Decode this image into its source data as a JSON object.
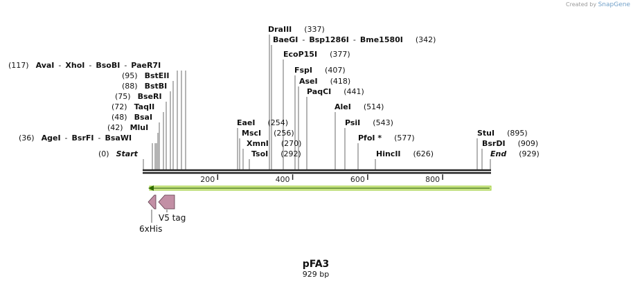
{
  "credit": {
    "text": "Created by",
    "brand": "SnapGene"
  },
  "plasmid": {
    "name": "pFA3",
    "length_label": "929 bp"
  },
  "ruler": {
    "length": 929,
    "ticks": [
      {
        "label": "200",
        "bp": 200
      },
      {
        "label": "400",
        "bp": 400
      },
      {
        "label": "600",
        "bp": 600
      },
      {
        "label": "800",
        "bp": 800
      }
    ]
  },
  "sites": [
    {
      "pos_label": "(117)",
      "enzymes": [
        {
          "name": "AvaI",
          "bp": 117
        },
        {
          "name": "XhoI",
          "bp": 117
        },
        {
          "name": "BsoBI",
          "bp": 117
        },
        {
          "name": "PaeR7I",
          "bp": 117
        }
      ],
      "side": "left"
    },
    {
      "pos_label": "(95)",
      "enzymes": [
        {
          "name": "BstEII",
          "bp": 95
        }
      ],
      "side": "left"
    },
    {
      "pos_label": "(88)",
      "enzymes": [
        {
          "name": "BstBI",
          "bp": 88
        }
      ],
      "side": "left"
    },
    {
      "pos_label": "(75)",
      "enzymes": [
        {
          "name": "BseRI",
          "bp": 75
        }
      ],
      "side": "left"
    },
    {
      "pos_label": "(72)",
      "enzymes": [
        {
          "name": "TaqII",
          "bp": 72
        }
      ],
      "side": "left"
    },
    {
      "pos_label": "(48)",
      "enzymes": [
        {
          "name": "BsaI",
          "bp": 48
        }
      ],
      "side": "left"
    },
    {
      "pos_label": "(42)",
      "enzymes": [
        {
          "name": "MluI",
          "bp": 42
        }
      ],
      "side": "left"
    },
    {
      "pos_label": "(36)",
      "enzymes": [
        {
          "name": "AgeI",
          "bp": 36
        },
        {
          "name": "BsrFI",
          "bp": 36
        },
        {
          "name": "BsaWI",
          "bp": 36
        }
      ],
      "side": "left"
    },
    {
      "pos_label": "(0)",
      "enzymes": [
        {
          "name": "Start",
          "bp": 0,
          "italic": true
        }
      ],
      "side": "left"
    },
    {
      "pos_label": "(337)",
      "enzymes": [
        {
          "name": "DraIII",
          "bp": 337
        }
      ],
      "side": "right"
    },
    {
      "pos_label": "(342)",
      "enzymes": [
        {
          "name": "BaeGI",
          "bp": 342
        },
        {
          "name": "Bsp1286I",
          "bp": 342
        },
        {
          "name": "Bme1580I",
          "bp": 342
        }
      ],
      "side": "right"
    },
    {
      "pos_label": "(377)",
      "enzymes": [
        {
          "name": "EcoP15I",
          "bp": 377
        }
      ],
      "side": "right"
    },
    {
      "pos_label": "(407)",
      "enzymes": [
        {
          "name": "FspI",
          "bp": 407
        }
      ],
      "side": "right"
    },
    {
      "pos_label": "(418)",
      "enzymes": [
        {
          "name": "AseI",
          "bp": 418
        }
      ],
      "side": "right"
    },
    {
      "pos_label": "(441)",
      "enzymes": [
        {
          "name": "PaqCI",
          "bp": 441
        }
      ],
      "side": "right"
    },
    {
      "pos_label": "(514)",
      "enzymes": [
        {
          "name": "AleI",
          "bp": 514
        }
      ],
      "side": "right"
    },
    {
      "pos_label": "(543)",
      "enzymes": [
        {
          "name": "PsiI",
          "bp": 543
        }
      ],
      "side": "right"
    },
    {
      "pos_label": "(577)",
      "enzymes": [
        {
          "name": "PfoI *",
          "bp": 577
        }
      ],
      "side": "right"
    },
    {
      "pos_label": "(626)",
      "enzymes": [
        {
          "name": "HincII",
          "bp": 626
        }
      ],
      "side": "right"
    },
    {
      "pos_label": "(254)",
      "enzymes": [
        {
          "name": "EaeI",
          "bp": 254
        }
      ],
      "side": "right"
    },
    {
      "pos_label": "(256)",
      "enzymes": [
        {
          "name": "MscI",
          "bp": 256
        }
      ],
      "side": "right"
    },
    {
      "pos_label": "(270)",
      "enzymes": [
        {
          "name": "XmnI",
          "bp": 270
        }
      ],
      "side": "right"
    },
    {
      "pos_label": "(292)",
      "enzymes": [
        {
          "name": "TsoI",
          "bp": 292
        }
      ],
      "side": "right"
    },
    {
      "pos_label": "(895)",
      "enzymes": [
        {
          "name": "StuI",
          "bp": 895
        }
      ],
      "side": "right"
    },
    {
      "pos_label": "(909)",
      "enzymes": [
        {
          "name": "BsrDI",
          "bp": 909
        }
      ],
      "side": "right"
    },
    {
      "pos_label": "(929)",
      "enzymes": [
        {
          "name": "End",
          "bp": 929,
          "italic": true
        }
      ],
      "side": "right"
    }
  ],
  "features": [
    {
      "name": "6xHis",
      "start": 0,
      "end": 18,
      "direction": "reverse",
      "color": "#c28fa5"
    },
    {
      "name": "V5 tag",
      "start": 21,
      "end": 63,
      "direction": "reverse",
      "color": "#c28fa5"
    }
  ],
  "orf": {
    "start": 0,
    "end": 929,
    "direction": "reverse",
    "color": "#9acd32"
  }
}
